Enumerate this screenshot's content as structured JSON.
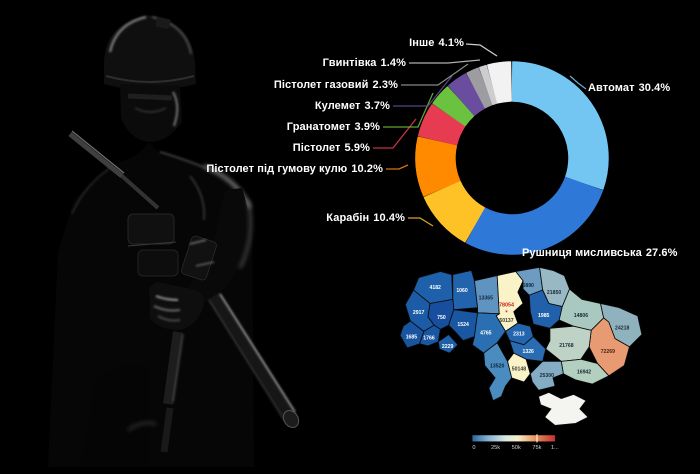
{
  "page": {
    "background": "#000000"
  },
  "chart_data": [
    {
      "type": "pie",
      "variant": "donut",
      "title": "",
      "unit": "percent",
      "legend_position": "callout-labels",
      "slices": [
        {
          "name": "Автомат",
          "value": 30.4,
          "label": "30.4%",
          "color": "#74C6F2"
        },
        {
          "name": "Рушниця мисливська",
          "value": 27.6,
          "label": "27.6%",
          "color": "#2E79D8"
        },
        {
          "name": "Карабін",
          "value": 10.4,
          "label": "10.4%",
          "color": "#FFC226"
        },
        {
          "name": "Пістолет під гумову кулю",
          "value": 10.2,
          "label": "10.2%",
          "color": "#FF8A00"
        },
        {
          "name": "Пістолет",
          "value": 5.9,
          "label": "5.9%",
          "color": "#E73B52"
        },
        {
          "name": "Гранатомет",
          "value": 3.9,
          "label": "3.9%",
          "color": "#6BC23E"
        },
        {
          "name": "Кулемет",
          "value": 3.7,
          "label": "3.7%",
          "color": "#6A4D9F"
        },
        {
          "name": "Пістолет газовий",
          "value": 2.3,
          "label": "2.3%",
          "color": "#9D9DA1"
        },
        {
          "name": "Гвинтівка",
          "value": 1.4,
          "label": "1.4%",
          "color": "#CDCDCF"
        },
        {
          "name": "Інше",
          "value": 4.1,
          "label": "4.1%",
          "color": "#F2F2F2"
        }
      ]
    },
    {
      "type": "choropleth",
      "title": "",
      "regions": [
        {
          "value": "4182",
          "color": "#1F60AA",
          "label_color": "#FFFFFF"
        },
        {
          "value": "1060",
          "color": "#2163AC",
          "label_color": "#FFFFFF"
        },
        {
          "value": "13365",
          "color": "#5F93C0",
          "label_color": "#14273D"
        },
        {
          "value": "50137",
          "color": "#FAF3C8",
          "label_color": "#3A3A30"
        },
        {
          "value": "6890",
          "color": "#6C9CC2",
          "label_color": "#14273D"
        },
        {
          "value": "21850",
          "color": "#97B8C4",
          "label_color": "#1C2B33"
        },
        {
          "value": "2917",
          "color": "#1C5CA6",
          "label_color": "#FFFFFF"
        },
        {
          "value": "750",
          "color": "#174F9E",
          "label_color": "#FFFFFF"
        },
        {
          "value": "1524",
          "color": "#1A57A2",
          "label_color": "#FFFFFF"
        },
        {
          "value": "1685",
          "color": "#1854A0",
          "label_color": "#FFFFFF"
        },
        {
          "value": "1766",
          "color": "#1A57A2",
          "label_color": "#FFFFFF"
        },
        {
          "value": "2229",
          "color": "#1F5EA8",
          "label_color": "#FFFFFF"
        },
        {
          "value": "4765",
          "color": "#2A6FB2",
          "label_color": "#FFFFFF"
        },
        {
          "value": "2313",
          "color": "#2365AE",
          "label_color": "#FFFFFF"
        },
        {
          "value": "1985",
          "color": "#2161AC",
          "label_color": "#FFFFFF"
        },
        {
          "value": "14806",
          "color": "#A8C8C0",
          "label_color": "#1C2B33"
        },
        {
          "value": "24218",
          "color": "#8FB2BE",
          "label_color": "#1C2B33"
        },
        {
          "value": "72269",
          "color": "#E89B72",
          "label_color": "#4A2317"
        },
        {
          "value": "21768",
          "color": "#BFD2C6",
          "label_color": "#1C2B33"
        },
        {
          "value": "16942",
          "color": "#B2CFC0",
          "label_color": "#1C2B33"
        },
        {
          "value": "1326",
          "color": "#2A6CB2",
          "label_color": "#FFFFFF"
        },
        {
          "value": "50148",
          "color": "#FAF3C8",
          "label_color": "#3A3A30"
        },
        {
          "value": "13520",
          "color": "#4A8CC0",
          "label_color": "#0E2238"
        },
        {
          "value": "25300",
          "color": "#84ACC4",
          "label_color": "#1C2B33"
        },
        {
          "value": "",
          "color": "#F4F4F0",
          "label_color": "#333333"
        }
      ],
      "city_marker": {
        "value": "78054",
        "label_color": "#C8201E",
        "glyph": "✶"
      },
      "legend": {
        "ticks": [
          "0",
          "25k",
          "50k",
          "75k",
          "1..."
        ],
        "gradient": [
          "#2E649E",
          "#7FB0D0",
          "#D8E8E4",
          "#F6EFC8",
          "#E8985C",
          "#C23030"
        ],
        "marker_color": "#FFFFFF"
      }
    }
  ]
}
